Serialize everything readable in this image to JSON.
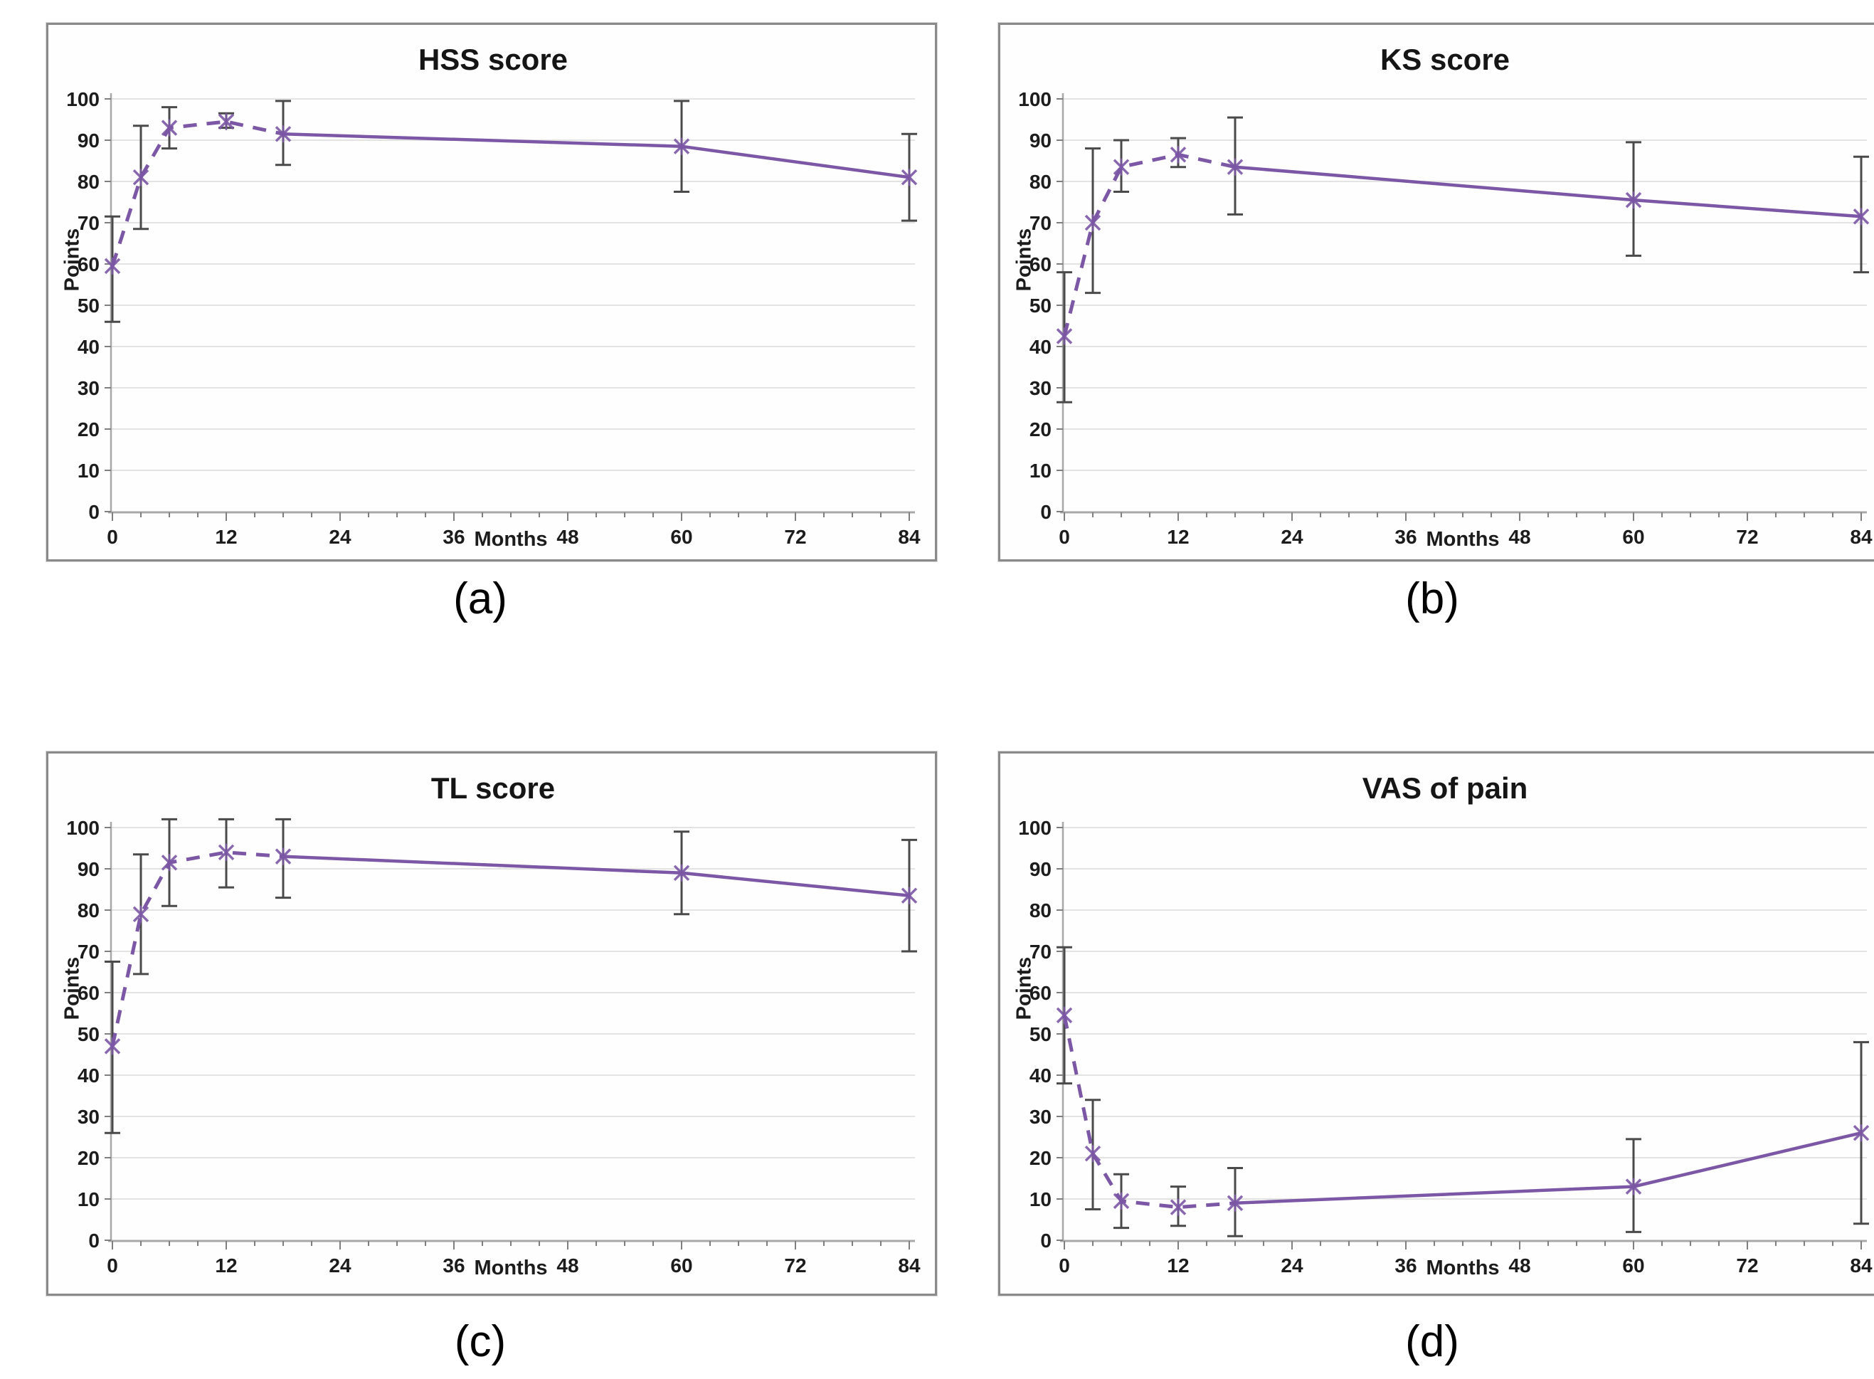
{
  "colors": {
    "series": "#7b57a5",
    "error_bar": "#4a4a4a",
    "gridline": "#e3e3e3",
    "axis_line": "#a8a8a8",
    "tick_mark": "#7f7f7f",
    "text": "#1c1c1c",
    "panel_border": "#8a8a8a"
  },
  "chart_data": [
    {
      "type": "line",
      "title": "HSS score",
      "caption": "(a)",
      "xlabel": "Months",
      "ylabel": "Points",
      "xlim": [
        0,
        84
      ],
      "ylim": [
        0,
        100
      ],
      "xticks": [
        0,
        12,
        24,
        36,
        48,
        60,
        72,
        84
      ],
      "yticks": [
        0,
        10,
        20,
        30,
        40,
        50,
        60,
        70,
        80,
        90,
        100
      ],
      "minor_xtick_step": 3,
      "grid": "horizontal",
      "legend": "none",
      "dashed_through_x": 18,
      "x": [
        0,
        3,
        6,
        12,
        18,
        60,
        84
      ],
      "series": [
        {
          "name": "HSS score",
          "values": [
            59.5,
            81,
            93,
            94.5,
            91.5,
            88.5,
            81
          ],
          "err_low": [
            46,
            68.5,
            88,
            93,
            84,
            77.5,
            70.5
          ],
          "err_high": [
            71.5,
            93.5,
            98,
            96.5,
            99.5,
            99.5,
            91.5
          ]
        }
      ]
    },
    {
      "type": "line",
      "title": "KS score",
      "caption": "(b)",
      "xlabel": "Months",
      "ylabel": "Points",
      "xlim": [
        0,
        84
      ],
      "ylim": [
        0,
        100
      ],
      "xticks": [
        0,
        12,
        24,
        36,
        48,
        60,
        72,
        84
      ],
      "yticks": [
        0,
        10,
        20,
        30,
        40,
        50,
        60,
        70,
        80,
        90,
        100
      ],
      "minor_xtick_step": 3,
      "grid": "horizontal",
      "legend": "none",
      "dashed_through_x": 18,
      "x": [
        0,
        3,
        6,
        12,
        18,
        60,
        84
      ],
      "series": [
        {
          "name": "KS score",
          "values": [
            42.5,
            70,
            83.5,
            86.5,
            83.5,
            75.5,
            71.5
          ],
          "err_low": [
            26.5,
            53,
            77.5,
            83.5,
            72,
            62,
            58
          ],
          "err_high": [
            58,
            88,
            90,
            90.5,
            95.5,
            89.5,
            86
          ]
        }
      ]
    },
    {
      "type": "line",
      "title": "TL score",
      "caption": "(c)",
      "xlabel": "Months",
      "ylabel": "Points",
      "xlim": [
        0,
        84
      ],
      "ylim": [
        0,
        100
      ],
      "xticks": [
        0,
        12,
        24,
        36,
        48,
        60,
        72,
        84
      ],
      "yticks": [
        0,
        10,
        20,
        30,
        40,
        50,
        60,
        70,
        80,
        90,
        100
      ],
      "minor_xtick_step": 3,
      "grid": "horizontal",
      "legend": "none",
      "dashed_through_x": 18,
      "x": [
        0,
        3,
        6,
        12,
        18,
        60,
        84
      ],
      "series": [
        {
          "name": "TL score",
          "values": [
            47,
            79,
            91.5,
            94,
            93,
            89,
            83.5
          ],
          "err_low": [
            26,
            64.5,
            81,
            85.5,
            83,
            79,
            70
          ],
          "err_high": [
            67.5,
            93.5,
            102,
            102,
            102,
            99,
            97
          ]
        }
      ]
    },
    {
      "type": "line",
      "title": "VAS of pain",
      "caption": "(d)",
      "xlabel": "Months",
      "ylabel": "Points",
      "xlim": [
        0,
        84
      ],
      "ylim": [
        0,
        100
      ],
      "xticks": [
        0,
        12,
        24,
        36,
        48,
        60,
        72,
        84
      ],
      "yticks": [
        0,
        10,
        20,
        30,
        40,
        50,
        60,
        70,
        80,
        90,
        100
      ],
      "minor_xtick_step": 3,
      "grid": "horizontal",
      "legend": "none",
      "dashed_through_x": 18,
      "x": [
        0,
        3,
        6,
        12,
        18,
        60,
        84
      ],
      "series": [
        {
          "name": "VAS of pain",
          "values": [
            54.5,
            21,
            9.5,
            8,
            9,
            13,
            26
          ],
          "err_low": [
            38,
            7.5,
            3,
            3.5,
            1,
            2,
            4
          ],
          "err_high": [
            71,
            34,
            16,
            13,
            17.5,
            24.5,
            48
          ]
        }
      ]
    }
  ]
}
